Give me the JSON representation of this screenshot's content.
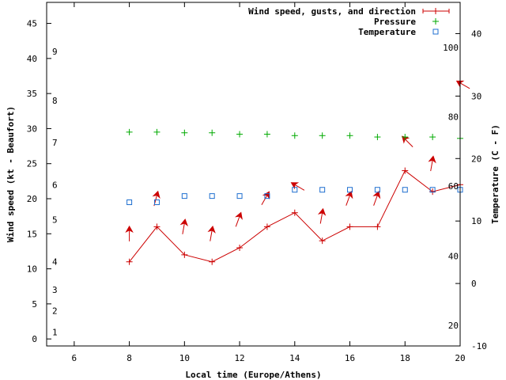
{
  "chart_data": {
    "type": "line",
    "xlabel": "Local time (Europe/Athens)",
    "ylabel_left": "Wind speed (kt - Beaufort)",
    "ylabel_right": "Temperature (C - F)",
    "x_range": [
      5,
      20
    ],
    "y_left_range": [
      -1,
      48
    ],
    "y_right_range": [
      -10,
      45
    ],
    "x_ticks": [
      6,
      8,
      10,
      12,
      14,
      16,
      18,
      20
    ],
    "y_left_ticks": [
      0,
      5,
      10,
      15,
      20,
      25,
      30,
      35,
      40,
      45
    ],
    "y_right_ticks": [
      -10,
      0,
      10,
      20,
      30,
      40
    ],
    "beaufort_labels": [
      {
        "label": "1",
        "kt": 1
      },
      {
        "label": "2",
        "kt": 4
      },
      {
        "label": "3",
        "kt": 7
      },
      {
        "label": "4",
        "kt": 11
      },
      {
        "label": "5",
        "kt": 17
      },
      {
        "label": "6",
        "kt": 22
      },
      {
        "label": "7",
        "kt": 28
      },
      {
        "label": "8",
        "kt": 34
      },
      {
        "label": "9",
        "kt": 41
      }
    ],
    "fahrenheit_labels": [
      {
        "label": "20",
        "value_c": -6.7
      },
      {
        "label": "40",
        "value_c": 4.4
      },
      {
        "label": "60",
        "value_c": 15.6
      },
      {
        "label": "80",
        "value_c": 26.7
      },
      {
        "label": "100",
        "value_c": 37.8
      }
    ],
    "legend": [
      {
        "label": "Wind speed, gusts, and direction",
        "color": "#cc0000"
      },
      {
        "label": "Pressure",
        "color": "#00aa00"
      },
      {
        "label": "Temperature",
        "color": "#1f6fd0"
      }
    ],
    "series": [
      {
        "name": "Wind speed",
        "axis": "left",
        "x": [
          8,
          9,
          10,
          11,
          12,
          13,
          14,
          15,
          16,
          17,
          18,
          19,
          20
        ],
        "values": [
          11,
          16,
          12,
          11,
          13,
          16,
          18,
          14,
          16,
          16,
          24,
          21,
          22
        ]
      },
      {
        "name": "Gusts",
        "axis": "left",
        "x": [
          8,
          9,
          10,
          11,
          12,
          13,
          14,
          15,
          16,
          17,
          18,
          19,
          20
        ],
        "values": [
          15.5,
          20.5,
          16.5,
          15.5,
          17.5,
          20.5,
          22,
          18,
          20.5,
          20.5,
          28.5,
          25.5,
          36.5
        ]
      },
      {
        "name": "Wind direction (deg, from)",
        "axis": "none",
        "x": [
          8,
          9,
          10,
          11,
          12,
          13,
          14,
          15,
          16,
          17,
          18,
          19,
          20
        ],
        "values": [
          0,
          15,
          10,
          10,
          20,
          30,
          300,
          10,
          20,
          20,
          315,
          10,
          300
        ]
      },
      {
        "name": "Pressure",
        "axis": "left",
        "x": [
          8,
          9,
          10,
          11,
          12,
          13,
          14,
          15,
          16,
          17,
          18,
          19,
          20
        ],
        "values": [
          29.5,
          29.5,
          29.4,
          29.4,
          29.2,
          29.2,
          29.0,
          29.0,
          29.0,
          28.8,
          28.8,
          28.8,
          28.6
        ]
      },
      {
        "name": "Temperature",
        "axis": "right",
        "x": [
          8,
          9,
          10,
          11,
          12,
          13,
          14,
          15,
          16,
          17,
          18,
          19,
          20
        ],
        "values": [
          13,
          13,
          14,
          14,
          14,
          14,
          15,
          15,
          15,
          15,
          15,
          15,
          15
        ]
      }
    ]
  }
}
